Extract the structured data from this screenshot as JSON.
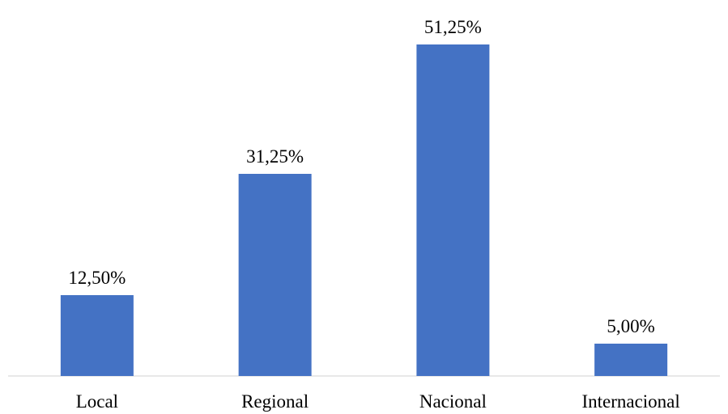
{
  "chart_data": {
    "type": "bar",
    "categories": [
      "Local",
      "Regional",
      "Nacional",
      "Internacional"
    ],
    "values": [
      12.5,
      31.25,
      51.25,
      5.0
    ],
    "data_labels": [
      "12,50%",
      "31,25%",
      "51,25%",
      "5,00%"
    ],
    "title": "",
    "xlabel": "",
    "ylabel": "",
    "ylim": [
      0,
      51.25
    ],
    "grid": false,
    "legend": "none",
    "colors": {
      "bar": "#4472c4",
      "axis": "#d9d9d9",
      "text": "#000000"
    }
  }
}
